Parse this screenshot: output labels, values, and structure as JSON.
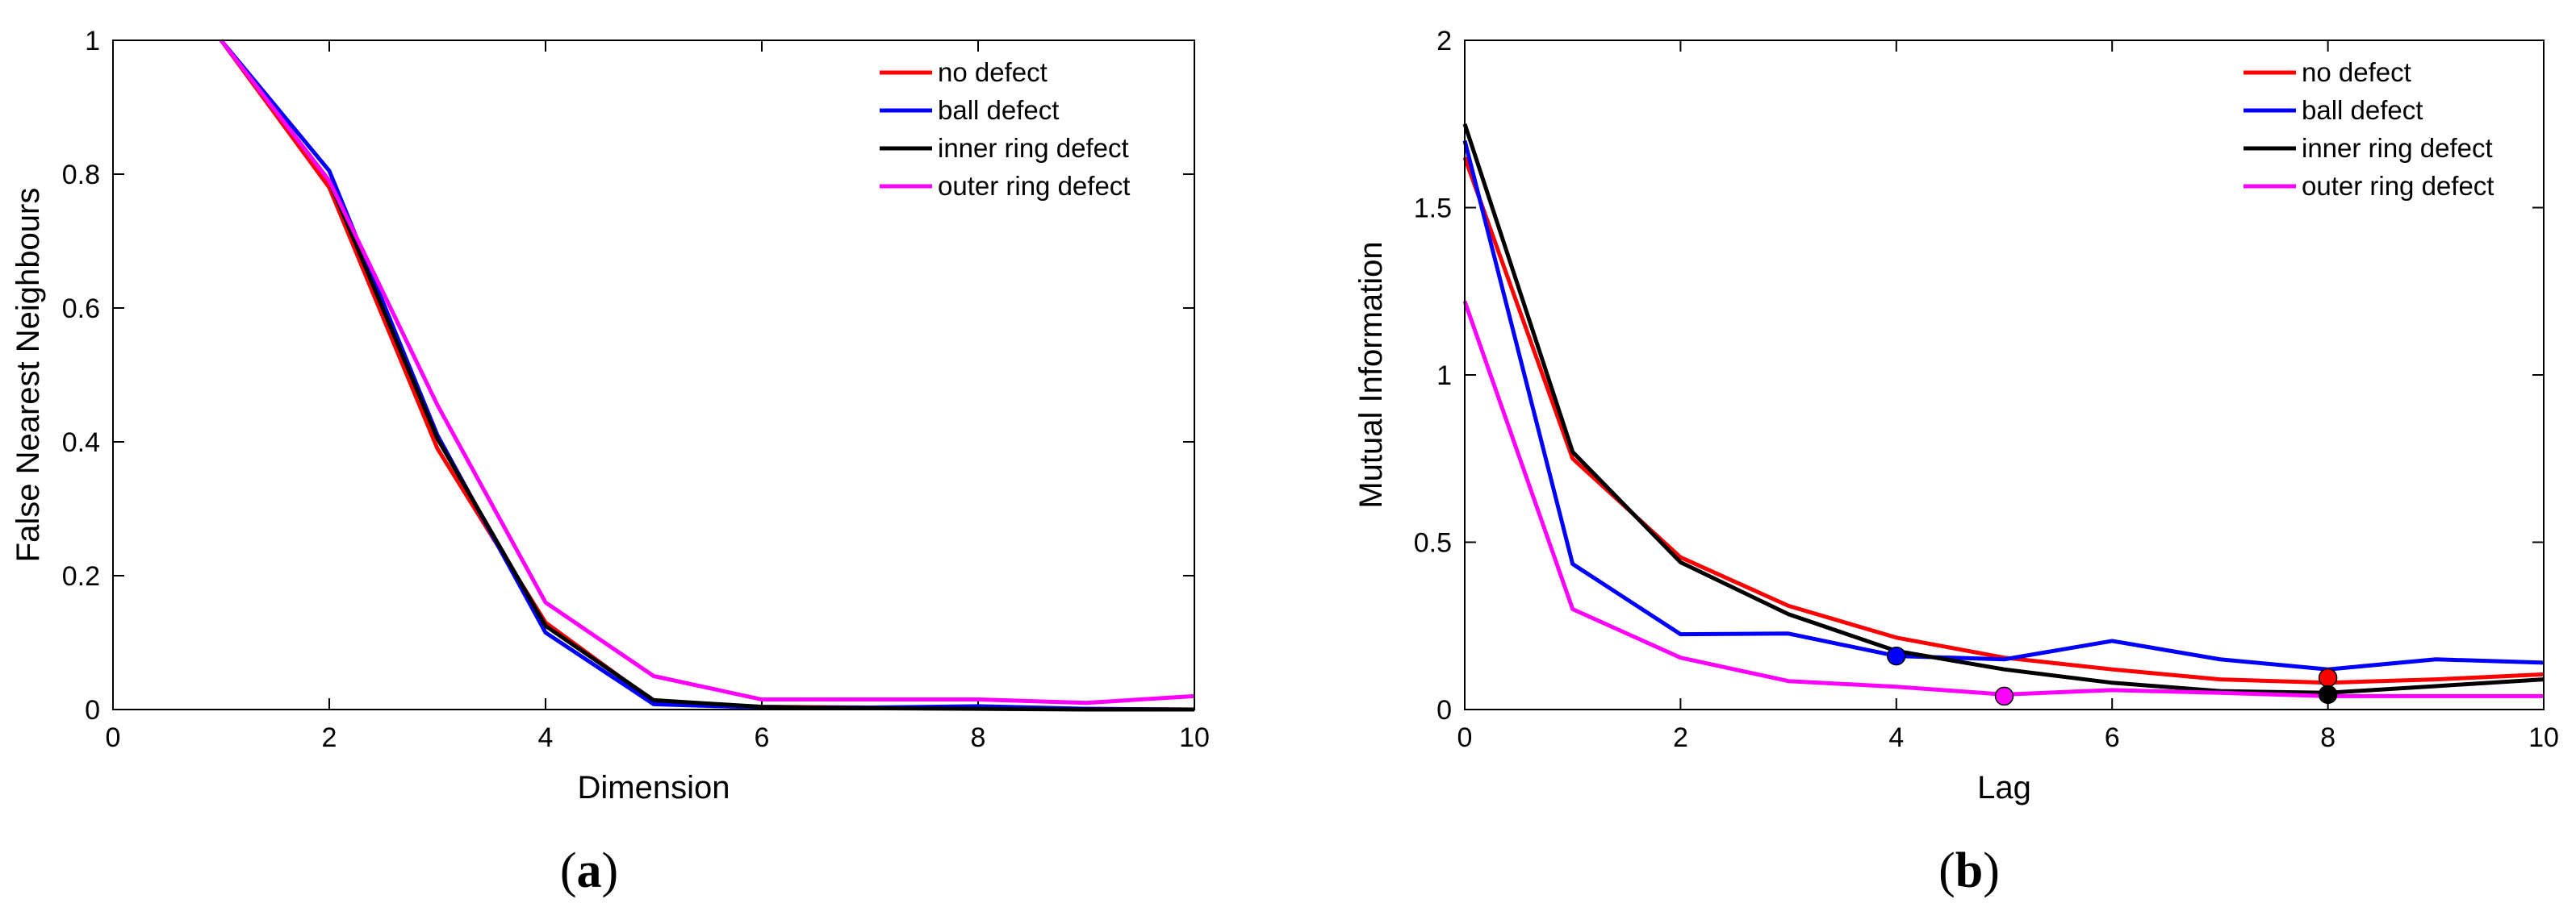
{
  "chart_data": [
    {
      "panel": "a",
      "panel_label": "(a)",
      "type": "line",
      "title": "",
      "xlabel": "Dimension",
      "ylabel": "False Nearest Neighbours",
      "xlim": [
        0,
        10
      ],
      "ylim": [
        0,
        1
      ],
      "xticks": [
        0,
        2,
        4,
        6,
        8,
        10
      ],
      "yticks": [
        0,
        0.2,
        0.4,
        0.6,
        0.8,
        1
      ],
      "ytick_labels": [
        "0",
        "0.2",
        "0.4",
        "0.6",
        "0.8",
        "1"
      ],
      "legend_position": "top-right",
      "x": [
        1,
        2,
        3,
        4,
        5,
        6,
        7,
        8,
        9,
        10
      ],
      "series": [
        {
          "name": "no defect",
          "color": "#ff0000",
          "values": [
            1.0,
            0.78,
            0.39,
            0.13,
            0.012,
            0.004,
            0.003,
            0.002,
            0.001,
            0.0
          ]
        },
        {
          "name": "ball defect",
          "color": "#0000ff",
          "values": [
            1.0,
            0.805,
            0.41,
            0.115,
            0.008,
            0.003,
            0.003,
            0.005,
            0.001,
            0.0
          ]
        },
        {
          "name": "inner ring defect",
          "color": "#000000",
          "values": [
            1.0,
            0.79,
            0.405,
            0.125,
            0.014,
            0.004,
            0.002,
            0.001,
            0.0,
            0.0
          ]
        },
        {
          "name": "outer ring defect",
          "color": "#ff00ff",
          "values": [
            1.0,
            0.79,
            0.455,
            0.16,
            0.05,
            0.015,
            0.015,
            0.015,
            0.01,
            0.02
          ]
        }
      ],
      "markers": []
    },
    {
      "panel": "b",
      "panel_label": "(b)",
      "type": "line",
      "title": "",
      "xlabel": "Lag",
      "ylabel": "Mutual Information",
      "xlim": [
        0,
        10
      ],
      "ylim": [
        0,
        2
      ],
      "xticks": [
        0,
        2,
        4,
        6,
        8,
        10
      ],
      "yticks": [
        0,
        0.5,
        1,
        1.5,
        2
      ],
      "ytick_labels": [
        "0",
        "0.5",
        "1",
        "1.5",
        "2"
      ],
      "legend_position": "top-right",
      "x": [
        0,
        1,
        2,
        3,
        4,
        5,
        6,
        7,
        8,
        9,
        10
      ],
      "series": [
        {
          "name": "no defect",
          "color": "#ff0000",
          "values": [
            1.65,
            0.75,
            0.455,
            0.31,
            0.215,
            0.155,
            0.12,
            0.09,
            0.08,
            0.09,
            0.105
          ]
        },
        {
          "name": "ball defect",
          "color": "#0000ff",
          "values": [
            1.7,
            0.435,
            0.225,
            0.227,
            0.16,
            0.15,
            0.205,
            0.15,
            0.12,
            0.15,
            0.14
          ]
        },
        {
          "name": "inner ring defect",
          "color": "#000000",
          "values": [
            1.75,
            0.77,
            0.44,
            0.285,
            0.175,
            0.12,
            0.08,
            0.055,
            0.05,
            0.07,
            0.09
          ]
        },
        {
          "name": "outer ring defect",
          "color": "#ff00ff",
          "values": [
            1.22,
            0.3,
            0.155,
            0.085,
            0.068,
            0.045,
            0.058,
            0.05,
            0.04,
            0.04,
            0.04
          ]
        }
      ],
      "markers": [
        {
          "series": "no defect",
          "color": "#ff0000",
          "x": 8,
          "y": 0.095
        },
        {
          "series": "ball defect",
          "color": "#0000ff",
          "x": 4,
          "y": 0.16
        },
        {
          "series": "inner ring defect",
          "color": "#000000",
          "x": 8,
          "y": 0.045
        },
        {
          "series": "outer ring defect",
          "color": "#ff00ff",
          "x": 5,
          "y": 0.04
        }
      ]
    }
  ]
}
